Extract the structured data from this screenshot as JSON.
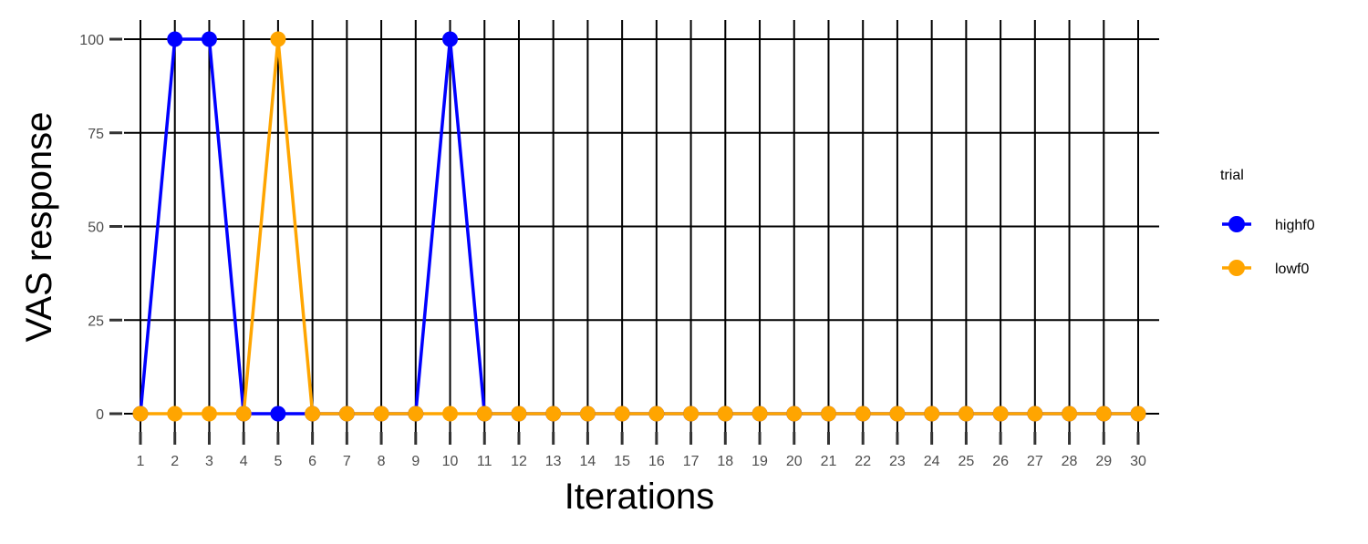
{
  "chart_data": {
    "type": "line",
    "xlabel": "Iterations",
    "ylabel": "VAS response",
    "x": [
      1,
      2,
      3,
      4,
      5,
      6,
      7,
      8,
      9,
      10,
      11,
      12,
      13,
      14,
      15,
      16,
      17,
      18,
      19,
      20,
      21,
      22,
      23,
      24,
      25,
      26,
      27,
      28,
      29,
      30
    ],
    "x_tick_labels": [
      "1",
      "2",
      "3",
      "4",
      "5",
      "6",
      "7",
      "8",
      "9",
      "10",
      "11",
      "12",
      "13",
      "14",
      "15",
      "16",
      "17",
      "18",
      "19",
      "20",
      "21",
      "22",
      "23",
      "24",
      "25",
      "26",
      "27",
      "28",
      "29",
      "30"
    ],
    "y_ticks": [
      0,
      25,
      50,
      75,
      100
    ],
    "y_tick_labels": [
      "0",
      "25",
      "50",
      "75",
      "100"
    ],
    "xlim": [
      1,
      30
    ],
    "ylim": [
      0,
      100
    ],
    "grid": true,
    "legend": {
      "title": "trial",
      "position": "right"
    },
    "series": [
      {
        "name": "highf0",
        "color": "#0000ff",
        "values": [
          0,
          100,
          100,
          0,
          0,
          0,
          0,
          0,
          0,
          100,
          0,
          0,
          0,
          0,
          0,
          0,
          0,
          0,
          0,
          0,
          0,
          0,
          0,
          0,
          0,
          0,
          0,
          0,
          0,
          0
        ]
      },
      {
        "name": "lowf0",
        "color": "#ffa500",
        "values": [
          0,
          0,
          0,
          0,
          100,
          0,
          0,
          0,
          0,
          0,
          0,
          0,
          0,
          0,
          0,
          0,
          0,
          0,
          0,
          0,
          0,
          0,
          0,
          0,
          0,
          0,
          0,
          0,
          0,
          0
        ]
      }
    ]
  }
}
